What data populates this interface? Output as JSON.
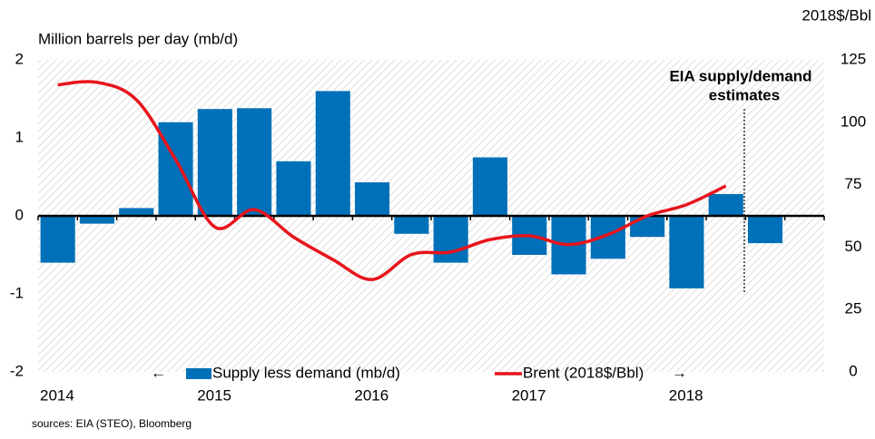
{
  "chart_data": {
    "type": "bar_line",
    "y_label": "Million barrels per day (mb/d)",
    "y2_label": "2018$/Bbl",
    "annotation": [
      "EIA supply/demand",
      "estimates"
    ],
    "source": "sources: EIA (STEO), Bloomberg",
    "categories": [
      "2014",
      null,
      null,
      null,
      "2015",
      null,
      null,
      null,
      "2016",
      null,
      null,
      null,
      "2017",
      null,
      null,
      null,
      "2018",
      null,
      null,
      null
    ],
    "series": [
      {
        "name": "Supply less demand (mb/d)",
        "type": "bar",
        "color": "#0070b8",
        "values": [
          -0.6,
          -0.1,
          0.1,
          1.2,
          1.37,
          1.38,
          0.7,
          1.6,
          0.43,
          -0.23,
          -0.6,
          0.75,
          -0.5,
          -0.75,
          -0.55,
          -0.27,
          -0.93,
          0.28,
          -0.35,
          null
        ]
      },
      {
        "name": "Brent (2018$/Bbl)",
        "type": "line",
        "axis": "y2",
        "color": "#e8141c",
        "values": [
          115,
          116,
          109,
          85,
          58,
          65,
          54,
          45,
          37,
          47,
          48,
          53,
          54.5,
          51,
          55,
          62.5,
          67,
          74.5,
          null,
          null
        ]
      }
    ],
    "ylim": [
      -2,
      2
    ],
    "yticks": [
      -2,
      -1,
      0,
      1,
      2
    ],
    "y2lim": [
      0,
      125
    ],
    "y2ticks": [
      0,
      25,
      50,
      75,
      100,
      125
    ]
  }
}
